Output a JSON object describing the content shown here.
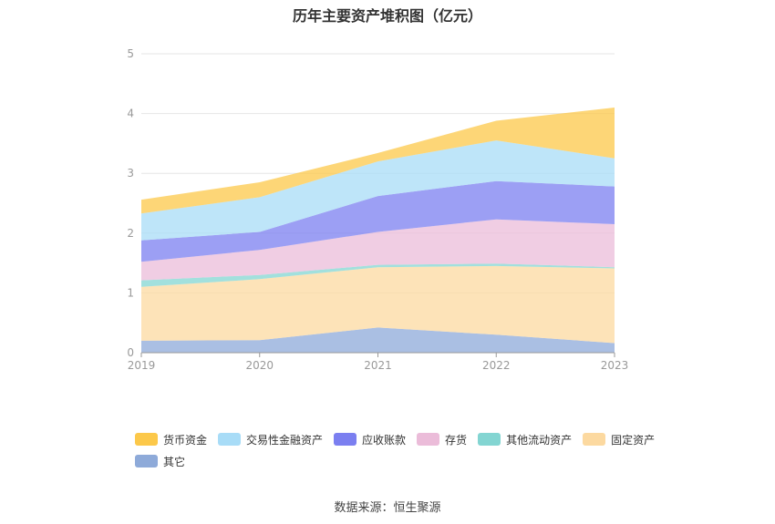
{
  "title": "历年主要资产堆积图（亿元）",
  "source": "数据来源：恒生聚源",
  "chart_data": {
    "type": "area",
    "stacked": true,
    "title": "历年主要资产堆积图（亿元）",
    "x": [
      "2019",
      "2020",
      "2021",
      "2022",
      "2023"
    ],
    "ylim": [
      0,
      5
    ],
    "yticks": [
      "0",
      "1",
      "2",
      "3",
      "4",
      "5"
    ],
    "grid": true,
    "legend_position": "bottom",
    "series": [
      {
        "name": "其它",
        "color": "#8eaad9",
        "values": [
          0.2,
          0.21,
          0.42,
          0.3,
          0.16
        ]
      },
      {
        "name": "固定资产",
        "color": "#fcd9a0",
        "values": [
          0.9,
          1.02,
          1.01,
          1.15,
          1.25
        ]
      },
      {
        "name": "其他流动资产",
        "color": "#83d5d2",
        "values": [
          0.11,
          0.07,
          0.04,
          0.04,
          0.02
        ]
      },
      {
        "name": "存货",
        "color": "#ebbcd9",
        "values": [
          0.31,
          0.42,
          0.55,
          0.74,
          0.72
        ]
      },
      {
        "name": "应收账款",
        "color": "#7b7ff0",
        "values": [
          0.36,
          0.3,
          0.6,
          0.64,
          0.63
        ]
      },
      {
        "name": "交易性金融资产",
        "color": "#a8dcf7",
        "values": [
          0.45,
          0.58,
          0.58,
          0.68,
          0.47
        ]
      },
      {
        "name": "货币资金",
        "color": "#fcc84a",
        "values": [
          0.23,
          0.25,
          0.14,
          0.33,
          0.85
        ]
      }
    ]
  }
}
